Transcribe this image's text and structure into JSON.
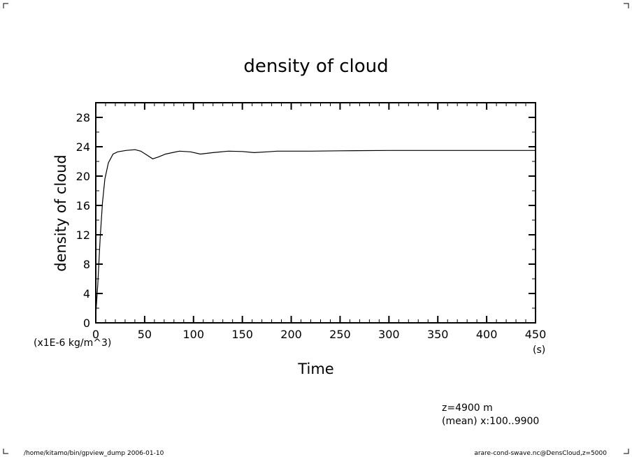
{
  "chart_data": {
    "type": "line",
    "title": "density of cloud",
    "xlabel": "Time",
    "xunit": "(s)",
    "ylabel": "density of cloud",
    "yunit": "(x1E-6 kg/m^3)",
    "xlim": [
      0,
      450
    ],
    "ylim": [
      0,
      30
    ],
    "xticks": [
      0,
      50,
      100,
      150,
      200,
      250,
      300,
      350,
      400,
      450
    ],
    "yticks": [
      0,
      4,
      8,
      12,
      16,
      20,
      24,
      28
    ],
    "grid": false,
    "series": [
      {
        "x": [
          0,
          2.1,
          4.5,
          6.9,
          9.3,
          12.9,
          17.7,
          22.4,
          30.8,
          40.3,
          46,
          52,
          58.2,
          64,
          71.3,
          85.6,
          97,
          107,
          120,
          135.7,
          150,
          162,
          175,
          185.8,
          220,
          250,
          300,
          350,
          400,
          450
        ],
        "y": [
          1.1,
          5.3,
          11.6,
          16.4,
          19.6,
          21.8,
          23.0,
          23.3,
          23.5,
          23.6,
          23.4,
          22.9,
          22.35,
          22.6,
          23.0,
          23.4,
          23.3,
          23.0,
          23.2,
          23.4,
          23.35,
          23.2,
          23.3,
          23.4,
          23.4,
          23.45,
          23.5,
          23.5,
          23.5,
          23.5
        ]
      }
    ]
  },
  "annotations": {
    "level": "z=4900 m",
    "mean": "(mean) x:100..9900",
    "footer_left": "/home/kitamo/bin/gpview_dump  2006-01-10",
    "footer_right": "arare-cond-swave.nc@DensCloud,z=5000"
  }
}
